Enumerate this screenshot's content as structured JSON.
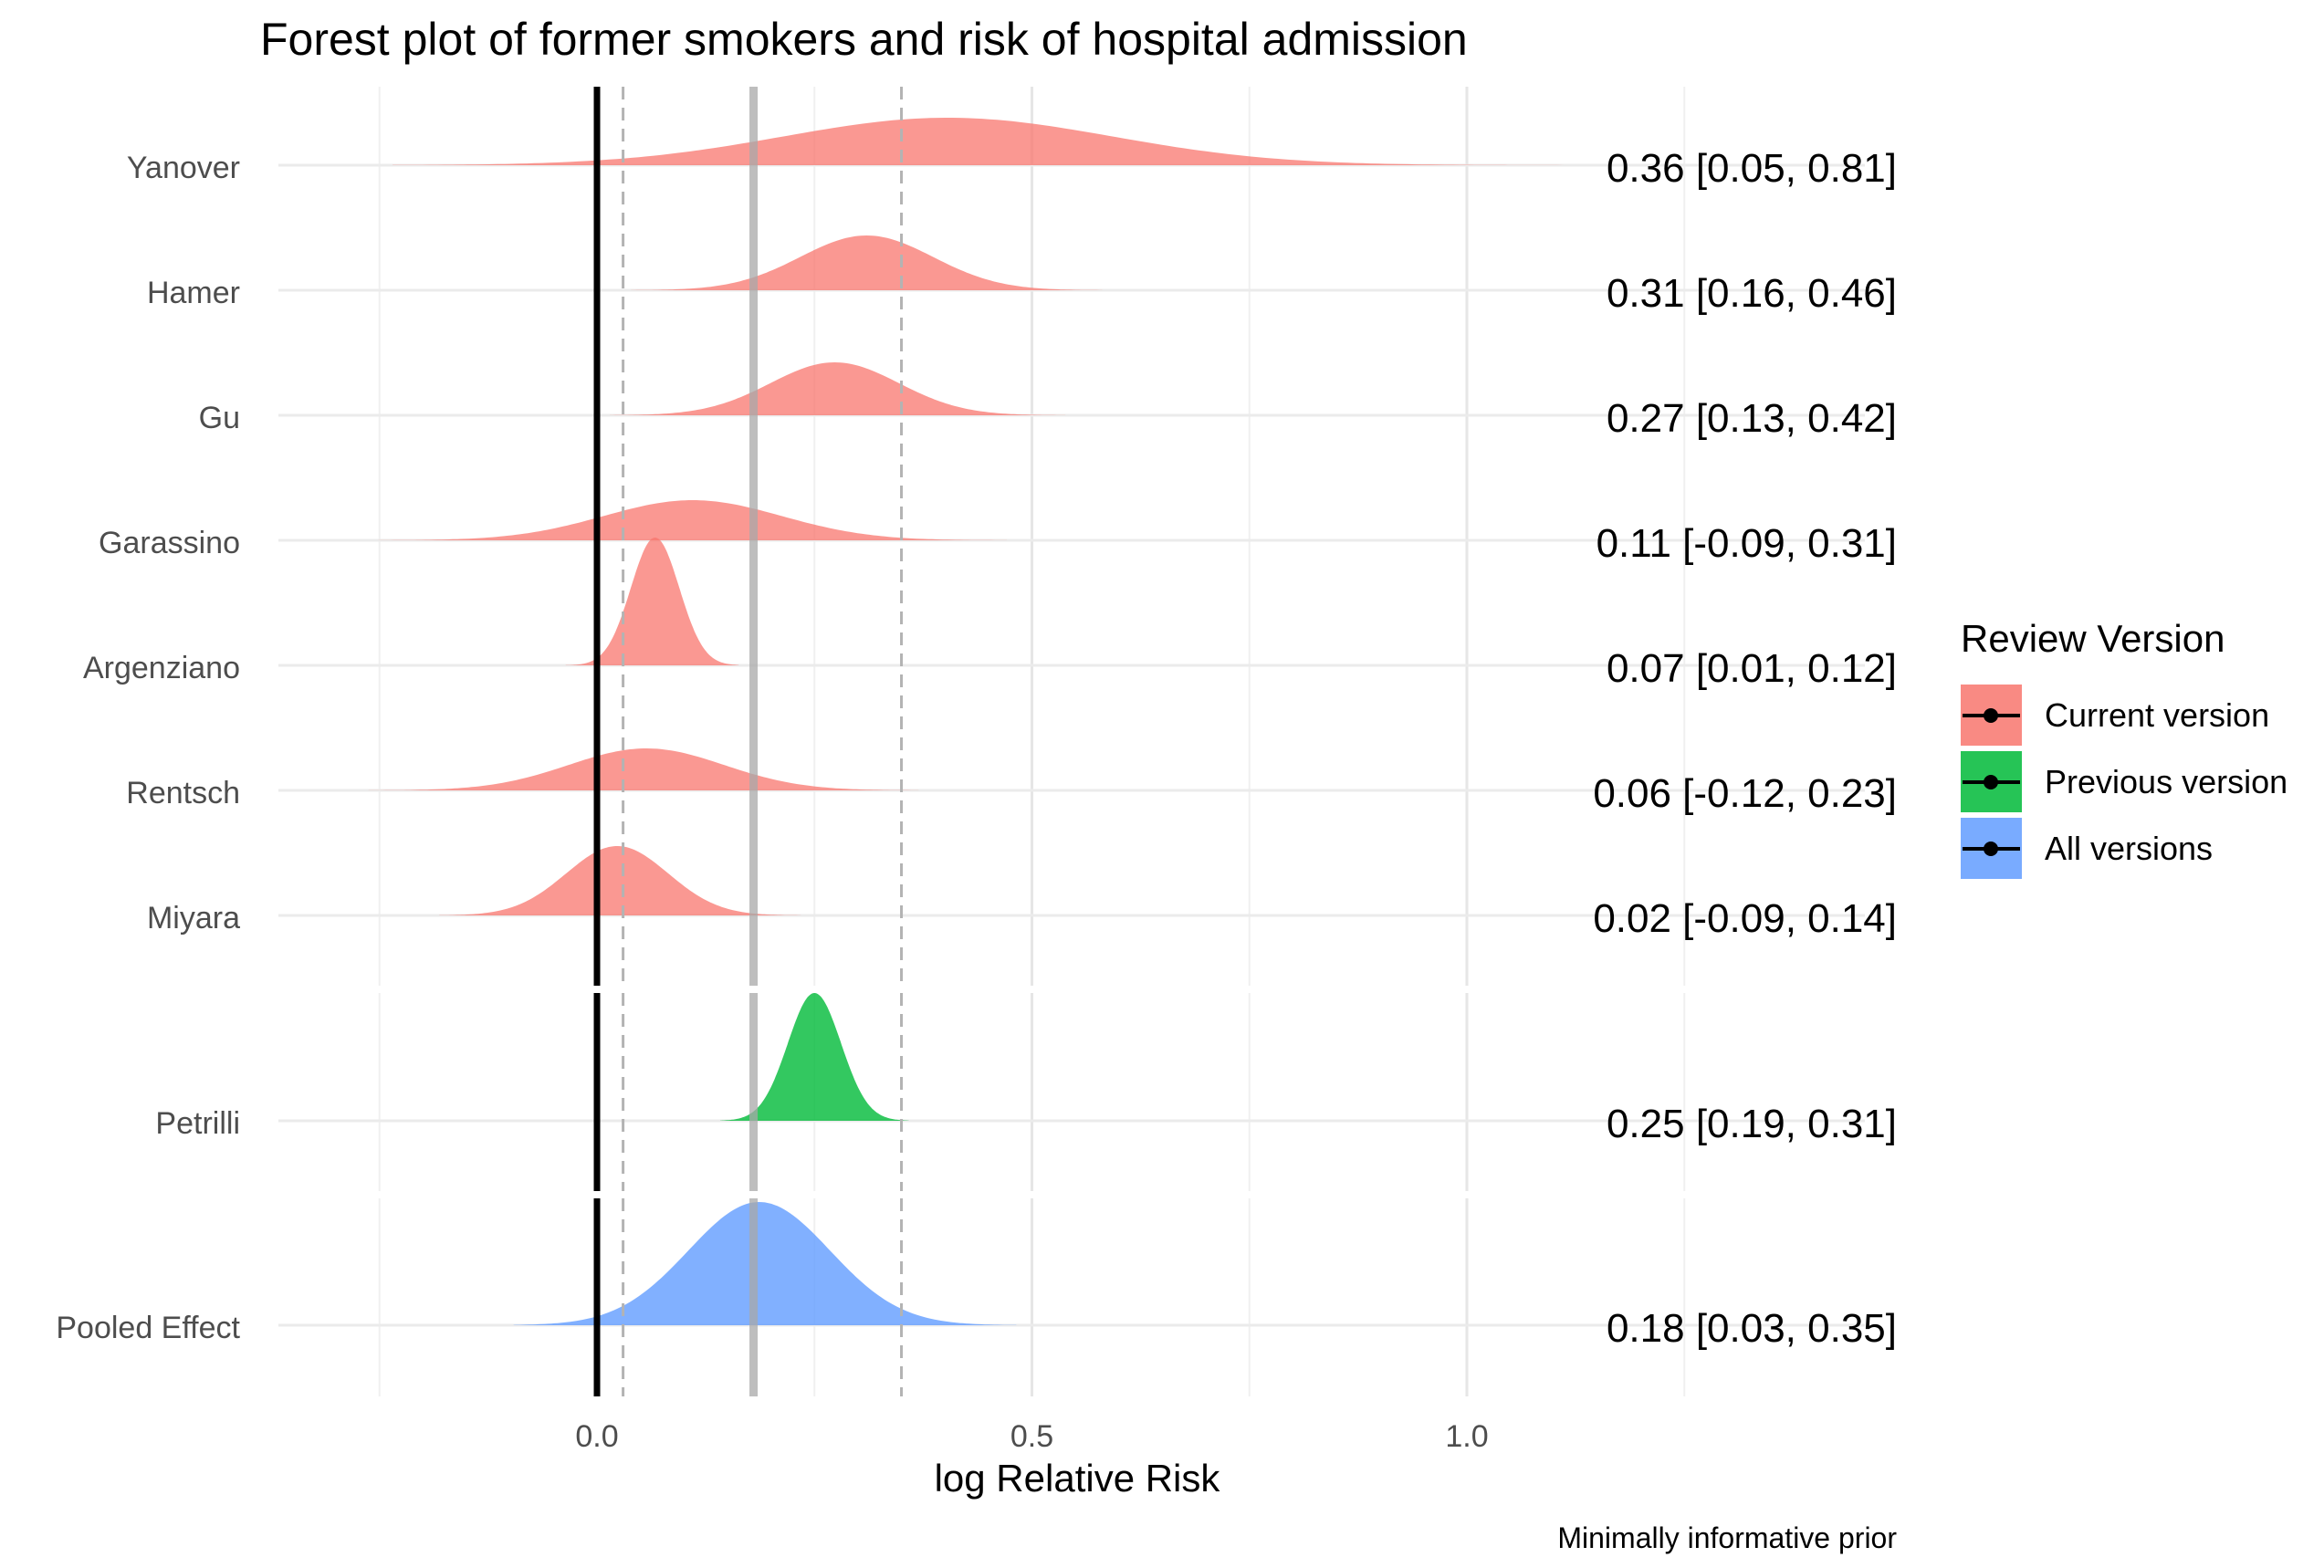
{
  "chart_data": {
    "type": "ridge-forest",
    "title": "Forest plot of former smokers and risk of hospital admission",
    "xlabel": "log Relative Risk",
    "caption": "Minimally informative prior",
    "xlim": [
      -0.4,
      1.25
    ],
    "x_ticks": [
      0.0,
      0.5,
      1.0
    ],
    "x_tick_labels": [
      "0.0",
      "0.5",
      "1.0"
    ],
    "reference_lines": {
      "null_effect": 0.0,
      "pooled_mean": 0.18,
      "pooled_interval": [
        0.03,
        0.35
      ]
    },
    "legend": {
      "title": "Review Version",
      "position": "right",
      "items": [
        {
          "label": "Current version",
          "color": "#F8766D"
        },
        {
          "label": "Previous version",
          "color": "#00BA38"
        },
        {
          "label": "All versions",
          "color": "#619CFF"
        }
      ]
    },
    "studies": [
      {
        "name": "Yanover",
        "group": "Current version",
        "mean": 0.36,
        "lo": 0.05,
        "hi": 0.81,
        "label": "0.36 [0.05, 0.81]"
      },
      {
        "name": "Hamer",
        "group": "Current version",
        "mean": 0.31,
        "lo": 0.16,
        "hi": 0.46,
        "label": "0.31 [0.16, 0.46]"
      },
      {
        "name": "Gu",
        "group": "Current version",
        "mean": 0.27,
        "lo": 0.13,
        "hi": 0.42,
        "label": "0.27 [0.13, 0.42]"
      },
      {
        "name": "Garassino",
        "group": "Current version",
        "mean": 0.11,
        "lo": -0.09,
        "hi": 0.31,
        "label": "0.11 [-0.09, 0.31]"
      },
      {
        "name": "Argenziano",
        "group": "Current version",
        "mean": 0.07,
        "lo": 0.01,
        "hi": 0.12,
        "label": "0.07 [0.01, 0.12]"
      },
      {
        "name": "Rentsch",
        "group": "Current version",
        "mean": 0.06,
        "lo": -0.12,
        "hi": 0.23,
        "label": "0.06 [-0.12, 0.23]"
      },
      {
        "name": "Miyara",
        "group": "Current version",
        "mean": 0.02,
        "lo": -0.09,
        "hi": 0.14,
        "label": "0.02 [-0.09, 0.14]"
      },
      {
        "name": "Petrilli",
        "group": "Previous version",
        "mean": 0.25,
        "lo": 0.19,
        "hi": 0.31,
        "label": "0.25 [0.19, 0.31]"
      },
      {
        "name": "Pooled Effect",
        "group": "All versions",
        "mean": 0.18,
        "lo": 0.03,
        "hi": 0.35,
        "label": "0.18 [0.03, 0.35]"
      }
    ]
  }
}
